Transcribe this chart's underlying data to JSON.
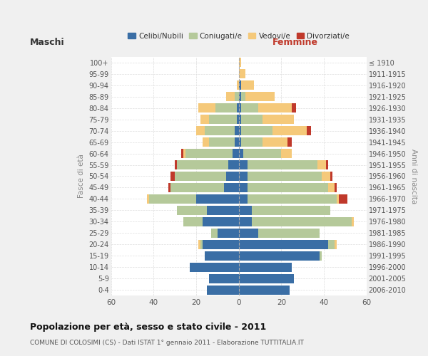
{
  "age_groups": [
    "0-4",
    "5-9",
    "10-14",
    "15-19",
    "20-24",
    "25-29",
    "30-34",
    "35-39",
    "40-44",
    "45-49",
    "50-54",
    "55-59",
    "60-64",
    "65-69",
    "70-74",
    "75-79",
    "80-84",
    "85-89",
    "90-94",
    "95-99",
    "100+"
  ],
  "birth_years": [
    "2006-2010",
    "2001-2005",
    "1996-2000",
    "1991-1995",
    "1986-1990",
    "1981-1985",
    "1976-1980",
    "1971-1975",
    "1966-1970",
    "1961-1965",
    "1956-1960",
    "1951-1955",
    "1946-1950",
    "1941-1945",
    "1936-1940",
    "1931-1935",
    "1926-1930",
    "1921-1925",
    "1916-1920",
    "1911-1915",
    "≤ 1910"
  ],
  "colors": {
    "celibi": "#3a6ea5",
    "coniugati": "#b5c99a",
    "vedovi": "#f5c97a",
    "divorziati": "#c0392b"
  },
  "maschi": {
    "celibi": [
      15,
      14,
      23,
      16,
      17,
      10,
      17,
      15,
      20,
      7,
      6,
      5,
      3,
      2,
      2,
      1,
      1,
      0,
      0,
      0,
      0
    ],
    "coniugati": [
      0,
      0,
      0,
      0,
      1,
      3,
      9,
      14,
      22,
      25,
      24,
      24,
      22,
      12,
      14,
      13,
      10,
      2,
      0,
      0,
      0
    ],
    "vedovi": [
      0,
      0,
      0,
      0,
      1,
      0,
      0,
      0,
      1,
      0,
      0,
      0,
      1,
      3,
      4,
      4,
      8,
      4,
      1,
      0,
      0
    ],
    "divorziati": [
      0,
      0,
      0,
      0,
      0,
      0,
      0,
      0,
      0,
      1,
      2,
      1,
      1,
      0,
      0,
      0,
      0,
      0,
      0,
      0,
      0
    ]
  },
  "femmine": {
    "celibi": [
      24,
      26,
      25,
      38,
      42,
      9,
      6,
      6,
      4,
      4,
      4,
      4,
      2,
      1,
      1,
      1,
      1,
      1,
      1,
      0,
      0
    ],
    "coniugati": [
      0,
      0,
      0,
      1,
      3,
      29,
      47,
      37,
      42,
      38,
      35,
      33,
      18,
      10,
      15,
      10,
      8,
      2,
      0,
      0,
      0
    ],
    "vedovi": [
      0,
      0,
      0,
      0,
      1,
      0,
      1,
      0,
      1,
      3,
      4,
      4,
      5,
      12,
      16,
      15,
      16,
      14,
      6,
      3,
      1
    ],
    "divorziati": [
      0,
      0,
      0,
      0,
      0,
      0,
      0,
      0,
      4,
      1,
      1,
      1,
      0,
      2,
      2,
      0,
      2,
      0,
      0,
      0,
      0
    ]
  },
  "xlim": 60,
  "title": "Popolazione per età, sesso e stato civile - 2011",
  "subtitle": "COMUNE DI COLOSIMI (CS) - Dati ISTAT 1° gennaio 2011 - Elaborazione TUTTITALIA.IT",
  "ylabel_left": "Fasce di età",
  "ylabel_right": "Anni di nascita",
  "xlabel_maschi": "Maschi",
  "xlabel_femmine": "Femmine",
  "bg_color": "#f0f0f0",
  "plot_bg": "#ffffff"
}
